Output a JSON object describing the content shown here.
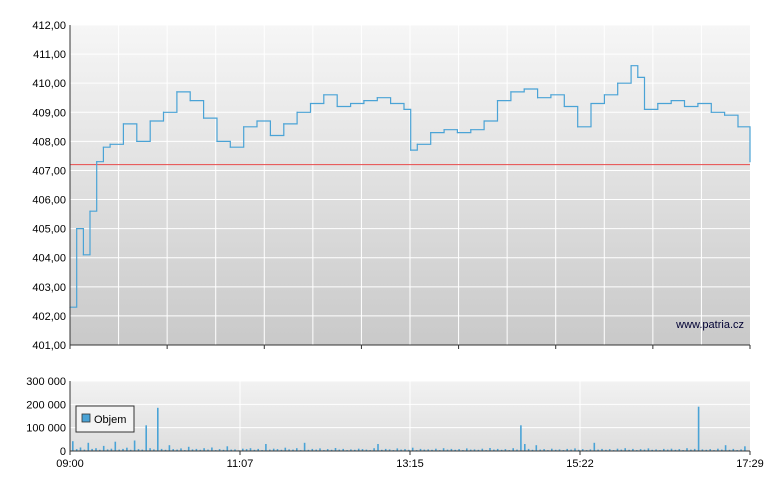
{
  "watermark": "www.patria.cz",
  "colors": {
    "price_line": "#4aa3d6",
    "reference_line": "#e84a4a",
    "volume_bar": "#4aa3d6",
    "grid": "#ffffff",
    "axis": "#333333"
  },
  "chart_data": [
    {
      "type": "line",
      "title": "",
      "xlabel": "",
      "ylabel": "",
      "ylim": [
        401,
        412
      ],
      "y_ticks": [
        "412,00",
        "411,00",
        "410,00",
        "409,00",
        "408,00",
        "407,00",
        "406,00",
        "405,00",
        "404,00",
        "403,00",
        "402,00",
        "401,00"
      ],
      "x_ticks": [
        "09:00",
        "11:07",
        "13:15",
        "15:22",
        "17:29"
      ],
      "grid": true,
      "reference_level": 407.2,
      "series": [
        {
          "x": [
            "09:00",
            "09:05",
            "09:10",
            "09:15",
            "09:20",
            "09:25",
            "09:30",
            "09:40",
            "09:50",
            "10:00",
            "10:10",
            "10:20",
            "10:30",
            "10:40",
            "10:50",
            "11:00",
            "11:10",
            "11:20",
            "11:30",
            "11:40",
            "11:50",
            "12:00",
            "12:10",
            "12:20",
            "12:30",
            "12:40",
            "12:50",
            "13:00",
            "13:10",
            "13:15",
            "13:20",
            "13:30",
            "13:40",
            "13:50",
            "14:00",
            "14:10",
            "14:20",
            "14:30",
            "14:40",
            "14:50",
            "15:00",
            "15:10",
            "15:20",
            "15:30",
            "15:40",
            "15:50",
            "16:00",
            "16:05",
            "16:10",
            "16:20",
            "16:30",
            "16:40",
            "16:50",
            "17:00",
            "17:10",
            "17:20",
            "17:29"
          ],
          "values": [
            402.3,
            405.0,
            404.1,
            405.6,
            407.3,
            407.8,
            407.9,
            408.6,
            408.0,
            408.7,
            409.0,
            409.7,
            409.4,
            408.8,
            408.0,
            407.8,
            408.5,
            408.7,
            408.2,
            408.6,
            409.0,
            409.3,
            409.6,
            409.2,
            409.3,
            409.4,
            409.5,
            409.3,
            409.1,
            407.7,
            407.9,
            408.3,
            408.4,
            408.3,
            408.4,
            408.7,
            409.4,
            409.7,
            409.8,
            409.5,
            409.6,
            409.2,
            408.5,
            409.3,
            409.6,
            410.0,
            410.6,
            410.2,
            409.1,
            409.3,
            409.4,
            409.2,
            409.3,
            409.0,
            408.9,
            408.5,
            407.3
          ]
        }
      ]
    },
    {
      "type": "bar",
      "title": "",
      "xlabel": "",
      "ylabel": "",
      "ylim": [
        0,
        300000
      ],
      "y_ticks": [
        "300 000",
        "200 000",
        "100 000",
        "0"
      ],
      "x_ticks": [
        "09:00",
        "11:07",
        "13:15",
        "15:22",
        "17:29"
      ],
      "grid": true,
      "legend": [
        "Objem"
      ],
      "legend_position": "top-left",
      "series": [
        {
          "name": "Objem",
          "values": [
            42000,
            8000,
            15000,
            6000,
            35000,
            9000,
            12000,
            5000,
            22000,
            7000,
            10000,
            40000,
            6000,
            9000,
            14000,
            5000,
            45000,
            8000,
            6000,
            110000,
            12000,
            7000,
            185000,
            9000,
            5000,
            25000,
            8000,
            6000,
            11000,
            4000,
            18000,
            7000,
            9000,
            5000,
            12000,
            6000,
            15000,
            4000,
            8000,
            5000,
            20000,
            6000,
            7000,
            3000,
            10000,
            8000,
            12000,
            5000,
            9000,
            4000,
            30000,
            6000,
            10000,
            8000,
            5000,
            14000,
            7000,
            6000,
            12000,
            4000,
            35000,
            5000,
            9000,
            6000,
            11000,
            4000,
            8000,
            5000,
            13000,
            6000,
            9000,
            4000,
            7000,
            5000,
            10000,
            8000,
            6000,
            4000,
            12000,
            30000,
            5000,
            9000,
            7000,
            4000,
            11000,
            6000,
            8000,
            5000,
            14000,
            4000,
            9000,
            6000,
            7000,
            5000,
            10000,
            4000,
            12000,
            6000,
            9000,
            5000,
            8000,
            4000,
            11000,
            6000,
            7000,
            5000,
            10000,
            4000,
            13000,
            6000,
            9000,
            5000,
            8000,
            4000,
            12000,
            6000,
            110000,
            30000,
            9000,
            5000,
            25000,
            6000,
            8000,
            4000,
            10000,
            5000,
            7000,
            4000,
            9000,
            6000,
            11000,
            5000,
            8000,
            4000,
            7000,
            35000,
            6000,
            9000,
            5000,
            8000,
            4000,
            10000,
            6000,
            12000,
            5000,
            9000,
            4000,
            8000,
            6000,
            11000,
            5000,
            7000,
            4000,
            9000,
            6000,
            10000,
            5000,
            8000,
            4000,
            12000,
            6000,
            9000,
            190000,
            7000,
            5000,
            8000,
            4000,
            10000,
            6000,
            25000,
            5000,
            9000,
            4000,
            7000,
            20000
          ]
        }
      ]
    }
  ]
}
